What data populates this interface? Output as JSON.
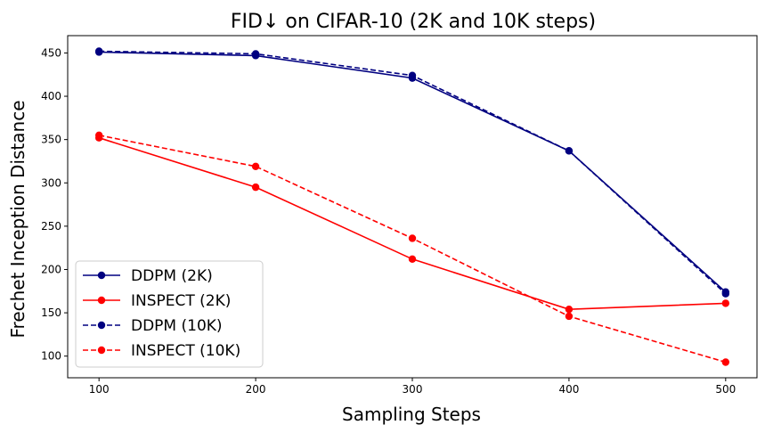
{
  "chart_data": {
    "type": "line",
    "title": "FID↓  on CIFAR-10 (2K and 10K steps)",
    "xlabel": "Sampling Steps",
    "ylabel": "Frechet Inception Distance",
    "x": [
      100,
      200,
      300,
      400,
      500
    ],
    "xlim": [
      80,
      520
    ],
    "ylim": [
      75,
      470
    ],
    "xticks": [
      100,
      200,
      300,
      400,
      500
    ],
    "yticks": [
      100,
      150,
      200,
      250,
      300,
      350,
      400,
      450
    ],
    "legend_position": "lower-left",
    "grid": false,
    "series": [
      {
        "name": "DDPM (2K)",
        "values": [
          451,
          447,
          421,
          337,
          174
        ],
        "color": "#000080",
        "dash": "solid"
      },
      {
        "name": "INSPECT (2K)",
        "values": [
          352,
          295,
          212,
          154,
          161
        ],
        "color": "#ff0000",
        "dash": "solid"
      },
      {
        "name": "DDPM (10K)",
        "values": [
          452,
          449,
          424,
          337,
          172
        ],
        "color": "#000080",
        "dash": "dashed"
      },
      {
        "name": "INSPECT (10K)",
        "values": [
          355,
          319,
          236,
          146,
          93
        ],
        "color": "#ff0000",
        "dash": "dashed"
      }
    ]
  }
}
